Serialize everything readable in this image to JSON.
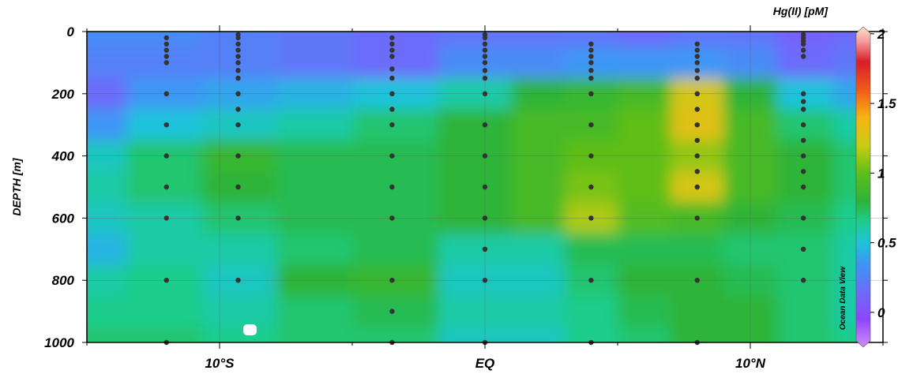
{
  "chart_data": {
    "type": "heatmap",
    "colorbar": {
      "title": "Hg(II) [pM]",
      "range": [
        -0.25,
        2.05
      ],
      "ticks": [
        0,
        0.5,
        1,
        1.5,
        2
      ],
      "tick_labels": [
        "0",
        "0.5",
        "1",
        "1.5",
        "2"
      ]
    },
    "ylabel": "DEPTH [m]",
    "y_ticks": [
      0,
      200,
      400,
      600,
      800,
      1000
    ],
    "y_tick_labels": [
      "0",
      "200",
      "400",
      "600",
      "800",
      "1000"
    ],
    "ylim": [
      1000,
      0
    ],
    "x_ticks": [
      -10,
      0,
      10
    ],
    "x_tick_labels": [
      "10°S",
      "EQ",
      "10°N"
    ],
    "xlim": [
      -15,
      15
    ],
    "data_extent_lat": 14.3,
    "credit": "Ocean Data View",
    "stations": [
      {
        "lat": -12,
        "depths": [
          20,
          40,
          60,
          80,
          100,
          200,
          300,
          400,
          500,
          600,
          800,
          1000
        ]
      },
      {
        "lat": -9.3,
        "depths": [
          10,
          20,
          40,
          60,
          80,
          100,
          125,
          150,
          200,
          250,
          300,
          400,
          500,
          600,
          800
        ]
      },
      {
        "lat": -3.5,
        "depths": [
          20,
          40,
          60,
          80,
          120,
          150,
          200,
          250,
          300,
          400,
          500,
          600,
          800,
          900,
          1000
        ]
      },
      {
        "lat": 0,
        "depths": [
          10,
          20,
          40,
          60,
          80,
          100,
          125,
          150,
          200,
          300,
          400,
          500,
          600,
          700,
          800,
          1000
        ]
      },
      {
        "lat": 4,
        "depths": [
          40,
          60,
          80,
          100,
          125,
          150,
          200,
          300,
          400,
          500,
          600,
          800,
          1000
        ]
      },
      {
        "lat": 8,
        "depths": [
          40,
          60,
          80,
          100,
          125,
          150,
          200,
          250,
          300,
          350,
          400,
          450,
          500,
          600,
          800,
          1000
        ]
      },
      {
        "lat": 12,
        "depths": [
          10,
          20,
          30,
          40,
          60,
          80,
          200,
          225,
          250,
          300,
          350,
          400,
          450,
          500,
          600,
          700,
          800
        ]
      }
    ],
    "field": {
      "lats": [
        -15,
        -12,
        -9.3,
        -6.4,
        -3.5,
        0,
        2,
        4,
        6,
        8,
        10,
        12,
        14.3
      ],
      "depths": [
        0,
        100,
        200,
        300,
        400,
        500,
        600,
        700,
        800,
        900,
        1000
      ],
      "values": [
        [
          0.3,
          0.3,
          0.25,
          0.2,
          0.15,
          0.2,
          0.2,
          0.2,
          0.15,
          0.2,
          0.2,
          0.1,
          0.15
        ],
        [
          0.25,
          0.25,
          0.25,
          0.2,
          0.15,
          0.3,
          0.3,
          0.35,
          0.35,
          0.35,
          0.3,
          0.15,
          0.2
        ],
        [
          0.15,
          0.35,
          0.4,
          0.45,
          0.5,
          0.6,
          0.8,
          0.85,
          0.9,
          1.25,
          0.8,
          0.5,
          0.4
        ],
        [
          0.35,
          0.5,
          0.55,
          0.6,
          0.7,
          0.8,
          0.9,
          0.9,
          1.0,
          1.3,
          0.9,
          0.7,
          0.6
        ],
        [
          0.55,
          0.7,
          0.85,
          0.75,
          0.75,
          0.8,
          0.9,
          1.0,
          1.0,
          1.1,
          0.9,
          0.8,
          0.7
        ],
        [
          0.6,
          0.7,
          0.8,
          0.75,
          0.75,
          0.8,
          0.9,
          1.05,
          1.0,
          1.25,
          0.9,
          0.8,
          0.7
        ],
        [
          0.55,
          0.6,
          0.7,
          0.75,
          0.75,
          0.8,
          0.9,
          1.15,
          0.95,
          0.9,
          0.8,
          0.75,
          0.65
        ],
        [
          0.45,
          0.6,
          0.6,
          0.7,
          0.75,
          0.6,
          0.6,
          0.75,
          0.75,
          0.75,
          0.7,
          0.7,
          0.6
        ],
        [
          0.6,
          0.65,
          0.55,
          0.8,
          0.85,
          0.55,
          0.55,
          0.7,
          0.8,
          0.8,
          0.75,
          0.7,
          0.6
        ],
        [
          0.65,
          0.65,
          0.6,
          0.7,
          0.75,
          0.6,
          0.6,
          0.65,
          0.75,
          0.8,
          0.8,
          0.7,
          0.6
        ],
        [
          0.7,
          0.7,
          0.65,
          0.7,
          0.7,
          0.55,
          0.55,
          0.65,
          0.7,
          0.8,
          0.8,
          0.7,
          0.65
        ]
      ]
    }
  }
}
